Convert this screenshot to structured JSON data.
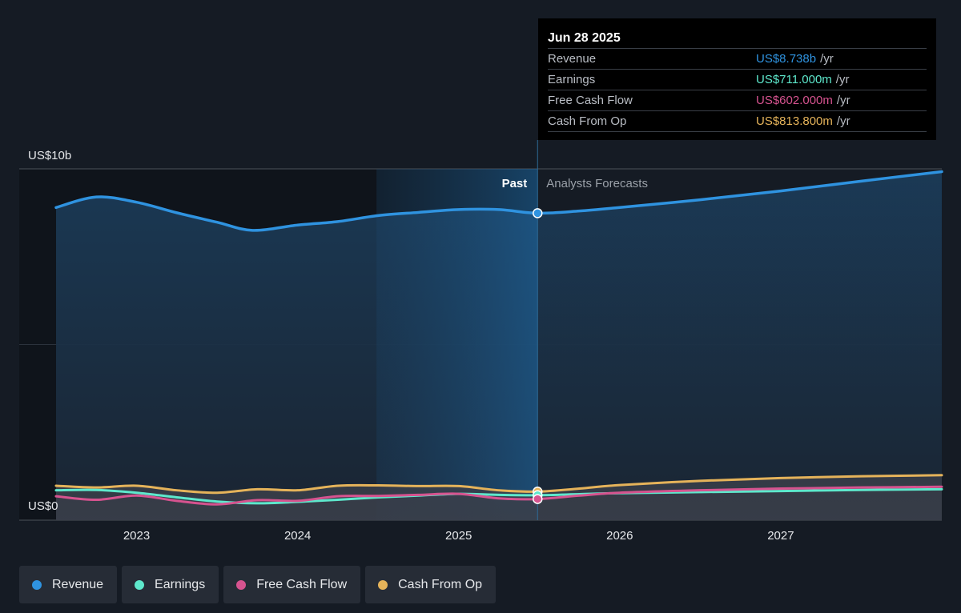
{
  "colors": {
    "revenue": "#2f93e0",
    "earnings": "#5ee8cc",
    "free_cash_flow": "#d6538f",
    "cash_from_op": "#e5b35a",
    "background": "#151b24"
  },
  "tooltip": {
    "date": "Jun 28 2025",
    "rows": [
      {
        "label": "Revenue",
        "value": "US$8.738b",
        "unit": "/yr"
      },
      {
        "label": "Earnings",
        "value": "US$711.000m",
        "unit": "/yr"
      },
      {
        "label": "Free Cash Flow",
        "value": "US$602.000m",
        "unit": "/yr"
      },
      {
        "label": "Cash From Op",
        "value": "US$813.800m",
        "unit": "/yr"
      }
    ]
  },
  "legend": [
    {
      "label": "Revenue",
      "color_key": "revenue"
    },
    {
      "label": "Earnings",
      "color_key": "earnings"
    },
    {
      "label": "Free Cash Flow",
      "color_key": "free_cash_flow"
    },
    {
      "label": "Cash From Op",
      "color_key": "cash_from_op"
    }
  ],
  "chart_data": {
    "type": "area",
    "y_top_label": "US$10b",
    "y_bottom_label": "US$0",
    "ylim": [
      0,
      10
    ],
    "y_unit": "US$ billions",
    "xlim": [
      2022.5,
      2028.0
    ],
    "x_ticks": [
      "2023",
      "2024",
      "2025",
      "2026",
      "2027"
    ],
    "past_label": "Past",
    "forecast_label": "Analysts Forecasts",
    "present_x": 2025.49,
    "highlight_start_x": 2024.49,
    "series": [
      {
        "name": "Revenue",
        "color_key": "revenue",
        "x": [
          2022.5,
          2022.75,
          2023.0,
          2023.25,
          2023.5,
          2023.72,
          2024.0,
          2024.25,
          2024.5,
          2024.75,
          2025.0,
          2025.25,
          2025.49,
          2025.75,
          2026.0,
          2026.5,
          2027.0,
          2027.5,
          2028.0
        ],
        "values": [
          8.9,
          9.2,
          9.05,
          8.75,
          8.48,
          8.25,
          8.4,
          8.5,
          8.67,
          8.76,
          8.84,
          8.84,
          8.738,
          8.8,
          8.9,
          9.12,
          9.37,
          9.65,
          9.92
        ]
      },
      {
        "name": "Earnings",
        "color_key": "earnings",
        "x": [
          2022.5,
          2022.75,
          2023.0,
          2023.25,
          2023.5,
          2023.75,
          2024.0,
          2024.25,
          2024.5,
          2024.75,
          2025.0,
          2025.25,
          2025.49,
          2025.75,
          2026.0,
          2026.5,
          2027.0,
          2027.5,
          2028.0
        ],
        "values": [
          0.85,
          0.86,
          0.78,
          0.65,
          0.53,
          0.48,
          0.52,
          0.58,
          0.65,
          0.7,
          0.75,
          0.72,
          0.711,
          0.74,
          0.77,
          0.8,
          0.83,
          0.86,
          0.88
        ]
      },
      {
        "name": "Free Cash Flow",
        "color_key": "free_cash_flow",
        "x": [
          2022.5,
          2022.75,
          2023.0,
          2023.25,
          2023.5,
          2023.75,
          2024.0,
          2024.25,
          2024.5,
          2024.75,
          2025.0,
          2025.25,
          2025.49,
          2025.75,
          2026.0,
          2026.5,
          2027.0,
          2027.5,
          2028.0
        ],
        "values": [
          0.68,
          0.58,
          0.7,
          0.55,
          0.45,
          0.57,
          0.55,
          0.68,
          0.69,
          0.72,
          0.75,
          0.62,
          0.602,
          0.7,
          0.78,
          0.85,
          0.9,
          0.93,
          0.95
        ]
      },
      {
        "name": "Cash From Op",
        "color_key": "cash_from_op",
        "x": [
          2022.5,
          2022.75,
          2023.0,
          2023.25,
          2023.5,
          2023.75,
          2024.0,
          2024.25,
          2024.5,
          2024.75,
          2025.0,
          2025.25,
          2025.49,
          2025.75,
          2026.0,
          2026.5,
          2027.0,
          2027.5,
          2028.0
        ],
        "values": [
          0.98,
          0.93,
          0.98,
          0.85,
          0.78,
          0.88,
          0.85,
          0.98,
          0.99,
          0.97,
          0.97,
          0.85,
          0.8138,
          0.9,
          1.0,
          1.12,
          1.2,
          1.25,
          1.28
        ]
      }
    ]
  }
}
